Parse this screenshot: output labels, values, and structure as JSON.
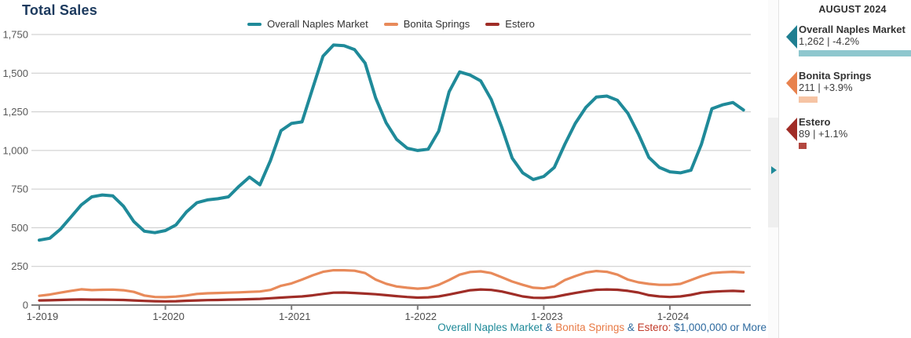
{
  "title": "Total Sales",
  "sidebar": {
    "header": "AUGUST 2024",
    "entries": [
      {
        "name": "Overall Naples Market",
        "value": "1,262",
        "value_num": 1262,
        "change": "-4.2%",
        "arrow_color": "#1f7f91",
        "bar_color": "#8ec7ce"
      },
      {
        "name": "Bonita Springs",
        "value": "211",
        "value_num": 211,
        "change": "+3.9%",
        "arrow_color": "#e8824e",
        "bar_color": "#f6c4a4"
      },
      {
        "name": "Estero",
        "value": "89",
        "value_num": 89,
        "change": "+1.1%",
        "arrow_color": "#a02c26",
        "bar_color": "#b2473f"
      }
    ]
  },
  "footer": {
    "segments": [
      {
        "text": "Overall Naples Market",
        "color": "#1f8a99"
      },
      {
        "text": " & ",
        "color": "#2d6a9f"
      },
      {
        "text": "Bonita Springs",
        "color": "#e87a45"
      },
      {
        "text": " & ",
        "color": "#2d6a9f"
      },
      {
        "text": "Estero:",
        "color": "#c23b2a"
      },
      {
        "text": " $1,000,000 or More",
        "color": "#2d6a9f"
      }
    ]
  },
  "chart_data": {
    "type": "line",
    "title": "Total Sales",
    "x_start": "2019-01",
    "x_interval": "monthly",
    "x_tick_labels": [
      "1-2019",
      "1-2020",
      "1-2021",
      "1-2022",
      "1-2023",
      "1-2024"
    ],
    "x_tick_month_indices": [
      0,
      12,
      24,
      36,
      48,
      60
    ],
    "ylim": [
      0,
      1750
    ],
    "y_ticks": [
      0,
      250,
      500,
      750,
      1000,
      1250,
      1500,
      1750
    ],
    "grid": "horizontal",
    "legend_position": "top-center",
    "series": [
      {
        "name": "Overall Naples Market",
        "color": "#1f8a99",
        "values": [
          420,
          432,
          490,
          568,
          648,
          700,
          712,
          706,
          640,
          540,
          478,
          468,
          482,
          518,
          602,
          662,
          680,
          688,
          700,
          768,
          828,
          778,
          935,
          1128,
          1175,
          1185,
          1400,
          1610,
          1682,
          1678,
          1652,
          1565,
          1340,
          1180,
          1072,
          1015,
          1000,
          1008,
          1125,
          1380,
          1508,
          1488,
          1450,
          1330,
          1150,
          950,
          855,
          812,
          832,
          890,
          1040,
          1175,
          1278,
          1345,
          1352,
          1325,
          1240,
          1108,
          955,
          890,
          862,
          855,
          872,
          1040,
          1270,
          1295,
          1310,
          1262
        ]
      },
      {
        "name": "Bonita Springs",
        "color": "#e88a5a",
        "values": [
          60,
          68,
          80,
          92,
          102,
          97,
          99,
          100,
          96,
          85,
          62,
          52,
          51,
          55,
          62,
          72,
          76,
          78,
          80,
          82,
          85,
          88,
          98,
          125,
          140,
          165,
          192,
          215,
          225,
          225,
          222,
          207,
          165,
          138,
          120,
          112,
          106,
          111,
          131,
          162,
          197,
          214,
          218,
          207,
          180,
          152,
          131,
          112,
          108,
          121,
          162,
          187,
          210,
          220,
          215,
          197,
          165,
          147,
          137,
          131,
          131,
          137,
          162,
          187,
          207,
          212,
          215,
          211
        ]
      },
      {
        "name": "Estero",
        "color": "#9f2d27",
        "values": [
          30,
          31,
          33,
          35,
          36,
          35,
          35,
          34,
          33,
          30,
          27,
          25,
          24,
          25,
          28,
          30,
          32,
          33,
          35,
          36,
          38,
          40,
          44,
          48,
          52,
          56,
          63,
          72,
          80,
          81,
          78,
          74,
          70,
          64,
          58,
          52,
          48,
          50,
          56,
          68,
          82,
          96,
          101,
          98,
          88,
          72,
          56,
          47,
          46,
          52,
          66,
          78,
          90,
          99,
          101,
          99,
          92,
          81,
          64,
          56,
          52,
          56,
          66,
          80,
          86,
          90,
          92,
          89
        ]
      }
    ]
  }
}
